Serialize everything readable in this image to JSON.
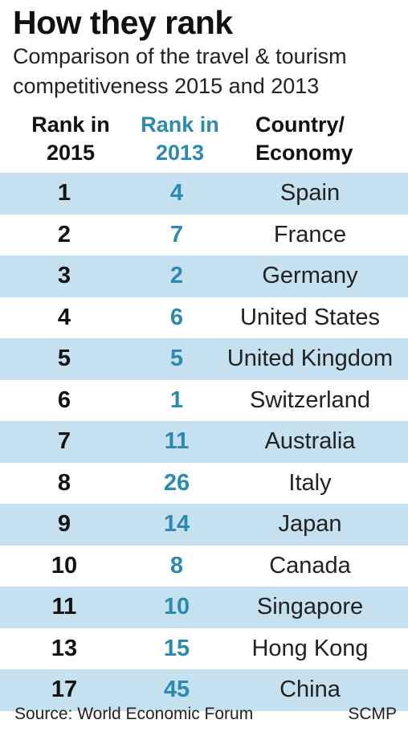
{
  "title": "How they rank",
  "subtitle": "Comparison of the travel & tourism competitiveness 2015 and 2013",
  "headers": {
    "rank2015": [
      "Rank in",
      "2015"
    ],
    "rank2013": [
      "Rank in",
      "2013"
    ],
    "country": [
      "Country/",
      "Economy"
    ]
  },
  "colors": {
    "accent": "#2b8ab0",
    "row_shade": "#c5e0ee",
    "text": "#111111"
  },
  "chart_data": {
    "type": "table",
    "columns": [
      "Rank in 2015",
      "Rank in 2013",
      "Country/ Economy"
    ],
    "rows": [
      {
        "rank2015": "1",
        "rank2013": "4",
        "country": "Spain"
      },
      {
        "rank2015": "2",
        "rank2013": "7",
        "country": "France"
      },
      {
        "rank2015": "3",
        "rank2013": "2",
        "country": "Germany"
      },
      {
        "rank2015": "4",
        "rank2013": "6",
        "country": "United States"
      },
      {
        "rank2015": "5",
        "rank2013": "5",
        "country": "United Kingdom"
      },
      {
        "rank2015": "6",
        "rank2013": "1",
        "country": "Switzerland"
      },
      {
        "rank2015": "7",
        "rank2013": "11",
        "country": "Australia"
      },
      {
        "rank2015": "8",
        "rank2013": "26",
        "country": "Italy"
      },
      {
        "rank2015": "9",
        "rank2013": "14",
        "country": "Japan"
      },
      {
        "rank2015": "10",
        "rank2013": "8",
        "country": "Canada"
      },
      {
        "rank2015": "11",
        "rank2013": "10",
        "country": "Singapore"
      },
      {
        "rank2015": "13",
        "rank2013": "15",
        "country": "Hong Kong"
      },
      {
        "rank2015": "17",
        "rank2013": "45",
        "country": "China"
      }
    ]
  },
  "footer": {
    "source": "Source: World Economic Forum",
    "brand": "SCMP"
  }
}
